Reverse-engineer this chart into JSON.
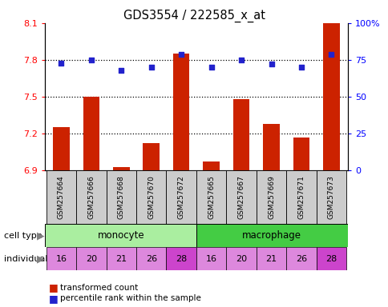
{
  "title": "GDS3554 / 222585_x_at",
  "samples": [
    "GSM257664",
    "GSM257666",
    "GSM257668",
    "GSM257670",
    "GSM257672",
    "GSM257665",
    "GSM257667",
    "GSM257669",
    "GSM257671",
    "GSM257673"
  ],
  "bar_values": [
    7.25,
    7.5,
    6.93,
    7.12,
    7.85,
    6.97,
    7.48,
    7.28,
    7.17,
    8.1
  ],
  "percentile_values": [
    73,
    75,
    68,
    70,
    79,
    70,
    75,
    72,
    70,
    79
  ],
  "individuals": [
    "16",
    "20",
    "21",
    "26",
    "28",
    "16",
    "20",
    "21",
    "26",
    "28"
  ],
  "ylim_left": [
    6.9,
    8.1
  ],
  "ylim_right": [
    0,
    100
  ],
  "yticks_left": [
    6.9,
    7.2,
    7.5,
    7.8,
    8.1
  ],
  "yticks_right": [
    0,
    25,
    50,
    75,
    100
  ],
  "ytick_labels_right": [
    "0",
    "25",
    "50",
    "75",
    "100%"
  ],
  "hlines": [
    7.2,
    7.5,
    7.8
  ],
  "bar_color": "#cc2200",
  "dot_color": "#2222cc",
  "monocyte_color": "#aaeea0",
  "macrophage_color": "#44cc44",
  "individual_color": "#dd88dd",
  "individual_28_color": "#cc44cc",
  "sample_bg_color": "#cccccc",
  "legend_bar_label": "transformed count",
  "legend_dot_label": "percentile rank within the sample",
  "cell_type_label": "cell type",
  "individual_label": "individual"
}
